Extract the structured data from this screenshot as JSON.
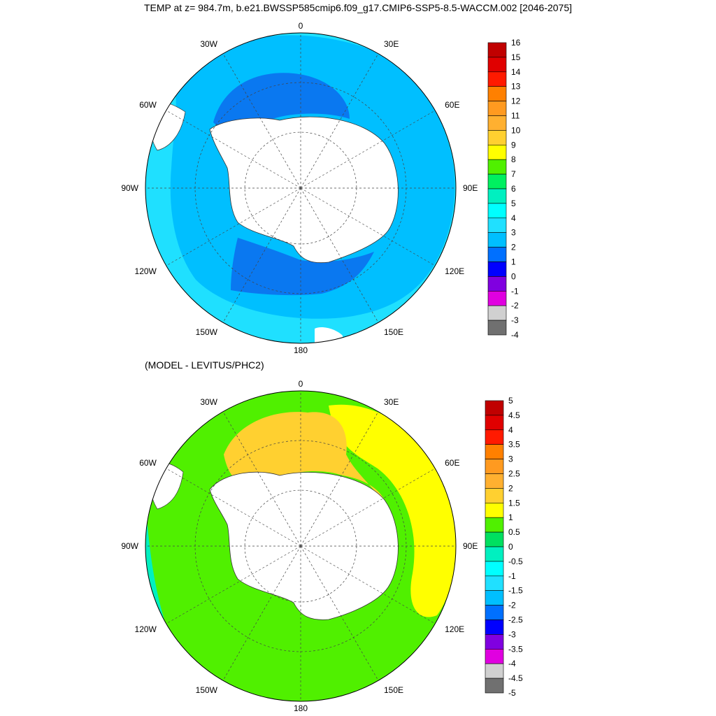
{
  "title": "TEMP at z= 984.7m, b.e21.BWSSP585cmip6.f09_g17.CMIP6-SSP5-8.5-WACCM.002 [2046-2075]",
  "subtitle": "(MODEL - LEVITUS/PHC2)",
  "colors": {
    "land": "#ffffff",
    "coast": "#333333",
    "grid": "#444444"
  },
  "maps": [
    {
      "name": "model-temperature-map",
      "longitude_labels": [
        "0",
        "30E",
        "60E",
        "90E",
        "120E",
        "150E",
        "180",
        "150W",
        "120W",
        "90W",
        "60W",
        "30W"
      ],
      "colorbar": {
        "labels": [
          "16",
          "15",
          "14",
          "13",
          "12",
          "11",
          "10",
          "9",
          "8",
          "7",
          "6",
          "5",
          "4",
          "3",
          "2",
          "1",
          "0",
          "-1",
          "-2",
          "-3",
          "-4"
        ],
        "colors": [
          "#c00000",
          "#e00000",
          "#ff1a00",
          "#ff8000",
          "#ff9a20",
          "#ffb030",
          "#ffd030",
          "#ffff00",
          "#50f000",
          "#00f060",
          "#00f0c0",
          "#00ffff",
          "#20e0ff",
          "#00bfff",
          "#0070ff",
          "#0000ff",
          "#8000e0",
          "#e000e0",
          "#d0d0d0",
          "#707070"
        ]
      },
      "fields": {
        "outer": "#1fe0ff",
        "mid": "#00bfff",
        "inner": "#0a78f0",
        "inner2": "#0a78f0"
      }
    },
    {
      "name": "model-minus-levitus-map",
      "longitude_labels": [
        "0",
        "30E",
        "60E",
        "90E",
        "120E",
        "150E",
        "180",
        "150W",
        "120W",
        "90W",
        "60W",
        "30W"
      ],
      "colorbar": {
        "labels": [
          "5",
          "4.5",
          "4",
          "3.5",
          "3",
          "2.5",
          "2",
          "1.5",
          "1",
          "0.5",
          "0",
          "-0.5",
          "-1",
          "-1.5",
          "-2",
          "-2.5",
          "-3",
          "-3.5",
          "-4",
          "-4.5",
          "-5"
        ],
        "colors": [
          "#c00000",
          "#e00000",
          "#ff1a00",
          "#ff8000",
          "#ff9a20",
          "#ffb030",
          "#ffd030",
          "#ffff00",
          "#50f000",
          "#00e060",
          "#00f0c0",
          "#00ffff",
          "#20e0ff",
          "#00bfff",
          "#0070ff",
          "#0000ff",
          "#8000e0",
          "#e000e0",
          "#d0d0d0",
          "#707070"
        ]
      },
      "fields": {
        "outer": "#50f000",
        "mid": "#ffff00",
        "inner": "#ffd030",
        "inner2": "#00f0c0"
      }
    }
  ]
}
